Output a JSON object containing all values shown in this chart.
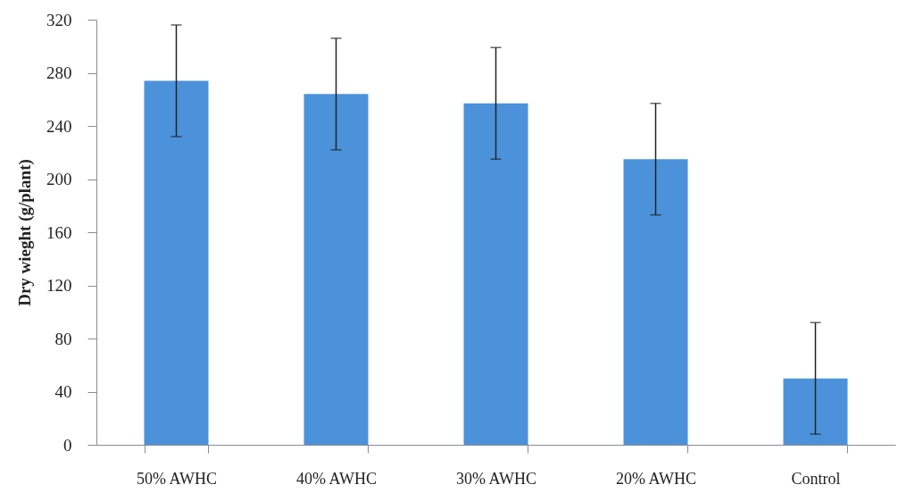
{
  "chart_data": {
    "type": "bar",
    "ylabel": "Dry wieght (g/plant)",
    "categories": [
      "50% AWHC",
      "40% AWHC",
      "30% AWHC",
      "20% AWHC",
      "Control"
    ],
    "values": [
      274,
      264,
      257,
      215,
      50
    ],
    "errors": [
      42,
      42,
      42,
      42,
      42
    ],
    "color": "#4b92db",
    "ylim": [
      0,
      320
    ],
    "yticks": [
      0,
      40,
      80,
      120,
      160,
      200,
      240,
      280,
      320
    ],
    "grid": false
  }
}
